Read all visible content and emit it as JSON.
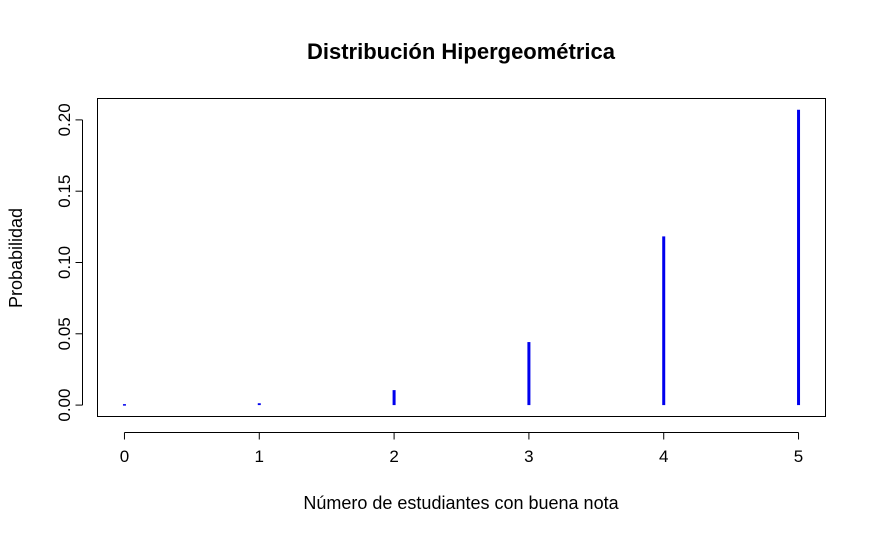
{
  "chart_data": {
    "type": "bar",
    "title": "Distribución Hipergeométrica",
    "xlabel": "Número de estudiantes con buena nota",
    "ylabel": "Probabilidad",
    "x": [
      0,
      1,
      2,
      3,
      4,
      5
    ],
    "x_tick_labels": [
      "0",
      "1",
      "2",
      "3",
      "4",
      "5"
    ],
    "values": [
      0.0003,
      0.0013,
      0.0105,
      0.0442,
      0.1183,
      0.2071
    ],
    "y_ticks": [
      0.0,
      0.05,
      0.1,
      0.15,
      0.2
    ],
    "y_tick_labels": [
      "0.00",
      "0.05",
      "0.10",
      "0.15",
      "0.20"
    ],
    "xlim": [
      -0.2,
      5.2
    ],
    "ylim": [
      -0.008,
      0.215
    ],
    "color": "#0000EE",
    "grid": false
  }
}
